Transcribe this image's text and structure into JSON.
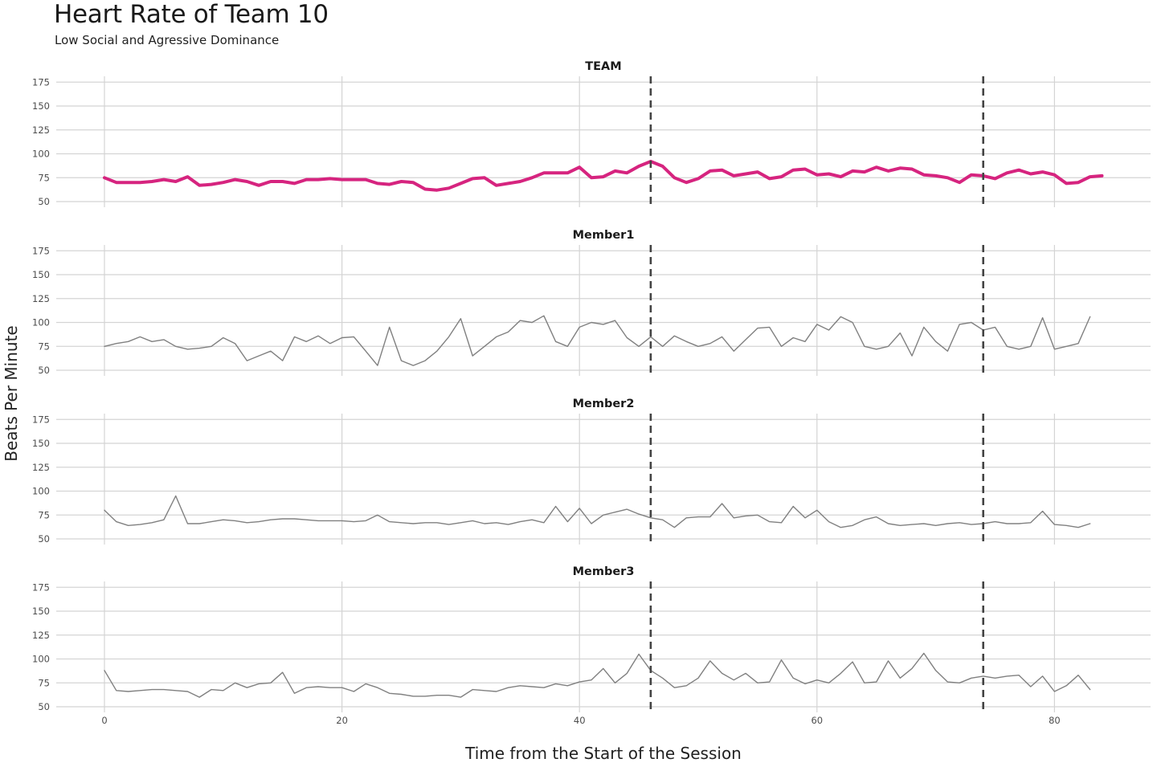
{
  "chart_data": {
    "type": "line",
    "title": "Heart Rate of Team 10",
    "subtitle": "Low Social and Agressive Dominance",
    "xlabel": "Time from the Start of the Session",
    "ylabel": "Beats Per Minute",
    "xlim": [
      -4.2,
      86
    ],
    "ylim": [
      46,
      179
    ],
    "x_ticks": [
      0,
      20,
      40,
      60,
      80
    ],
    "y_ticks": [
      50,
      75,
      100,
      125,
      150,
      175
    ],
    "vlines": [
      46,
      74
    ],
    "colors": {
      "team": "#d6247f",
      "member": "#808080",
      "vline": "#444444",
      "grid": "#d4d4d4"
    },
    "panels": [
      {
        "name": "TEAM",
        "x": [
          0,
          1,
          2,
          3,
          4,
          5,
          6,
          7,
          8,
          9,
          10,
          11,
          12,
          13,
          14,
          15,
          16,
          17,
          18,
          19,
          20,
          21,
          22,
          23,
          24,
          25,
          26,
          27,
          28,
          29,
          30,
          31,
          32,
          33,
          34,
          35,
          36,
          37,
          38,
          39,
          40,
          41,
          42,
          43,
          44,
          45,
          46,
          47,
          48,
          49,
          50,
          51,
          52,
          53,
          54,
          55,
          56,
          57,
          58,
          59,
          60,
          61,
          62,
          63,
          64,
          65,
          66,
          67,
          68,
          69,
          70,
          71,
          72,
          73,
          74,
          75,
          76,
          77,
          78,
          79,
          80,
          81,
          82,
          83,
          84
        ],
        "y": [
          75,
          70,
          70,
          70,
          71,
          73,
          71,
          76,
          67,
          68,
          70,
          73,
          71,
          67,
          71,
          71,
          69,
          73,
          73,
          74,
          73,
          73,
          73,
          69,
          68,
          71,
          70,
          63,
          62,
          64,
          69,
          74,
          75,
          67,
          69,
          71,
          75,
          80,
          80,
          80,
          86,
          75,
          76,
          82,
          80,
          87,
          92,
          87,
          75,
          70,
          74,
          82,
          83,
          77,
          79,
          81,
          74,
          76,
          83,
          84,
          78,
          79,
          76,
          82,
          81,
          86,
          82,
          85,
          84,
          78,
          77,
          75,
          70,
          78,
          77,
          74,
          80,
          83,
          79,
          81,
          78,
          69,
          70,
          76,
          77
        ]
      },
      {
        "name": "Member1",
        "x": [
          0,
          1,
          2,
          3,
          4,
          5,
          6,
          7,
          8,
          9,
          10,
          11,
          12,
          13,
          14,
          15,
          16,
          17,
          18,
          19,
          20,
          21,
          22,
          23,
          24,
          25,
          26,
          27,
          28,
          29,
          30,
          31,
          32,
          33,
          34,
          35,
          36,
          37,
          38,
          39,
          40,
          41,
          42,
          43,
          44,
          45,
          46,
          47,
          48,
          49,
          50,
          51,
          52,
          53,
          54,
          55,
          56,
          57,
          58,
          59,
          60,
          61,
          62,
          63,
          64,
          65,
          66,
          67,
          68,
          69,
          70,
          71,
          72,
          73,
          74,
          75,
          76,
          77,
          78,
          79,
          80,
          81,
          82,
          83
        ],
        "y": [
          75,
          78,
          80,
          85,
          80,
          82,
          75,
          72,
          73,
          75,
          84,
          78,
          60,
          65,
          70,
          60,
          85,
          80,
          86,
          78,
          84,
          85,
          70,
          55,
          95,
          60,
          55,
          60,
          70,
          85,
          104,
          65,
          75,
          85,
          90,
          102,
          100,
          107,
          80,
          75,
          95,
          100,
          98,
          102,
          84,
          75,
          85,
          75,
          86,
          80,
          75,
          78,
          85,
          70,
          82,
          94,
          95,
          75,
          84,
          80,
          98,
          92,
          106,
          100,
          75,
          72,
          75,
          89,
          65,
          95,
          80,
          70,
          98,
          100,
          92,
          95,
          75,
          72,
          75,
          105,
          72,
          75,
          78,
          106
        ]
      },
      {
        "name": "Member2",
        "x": [
          0,
          1,
          2,
          3,
          4,
          5,
          6,
          7,
          8,
          9,
          10,
          11,
          12,
          13,
          14,
          15,
          16,
          17,
          18,
          19,
          20,
          21,
          22,
          23,
          24,
          25,
          26,
          27,
          28,
          29,
          30,
          31,
          32,
          33,
          34,
          35,
          36,
          37,
          38,
          39,
          40,
          41,
          42,
          43,
          44,
          45,
          46,
          47,
          48,
          49,
          50,
          51,
          52,
          53,
          54,
          55,
          56,
          57,
          58,
          59,
          60,
          61,
          62,
          63,
          64,
          65,
          66,
          67,
          68,
          69,
          70,
          71,
          72,
          73,
          74,
          75,
          76,
          77,
          78,
          79,
          80,
          81,
          82,
          83
        ],
        "y": [
          80,
          68,
          64,
          65,
          67,
          70,
          95,
          66,
          66,
          68,
          70,
          69,
          67,
          68,
          70,
          71,
          71,
          70,
          69,
          69,
          69,
          68,
          69,
          75,
          68,
          67,
          66,
          67,
          67,
          65,
          67,
          69,
          66,
          67,
          65,
          68,
          70,
          67,
          84,
          68,
          82,
          66,
          75,
          78,
          81,
          76,
          72,
          70,
          62,
          72,
          73,
          73,
          87,
          72,
          74,
          75,
          68,
          67,
          84,
          72,
          80,
          68,
          62,
          64,
          70,
          73,
          66,
          64,
          65,
          66,
          64,
          66,
          67,
          65,
          66,
          68,
          66,
          66,
          67,
          79,
          65,
          64,
          62,
          66
        ]
      },
      {
        "name": "Member3",
        "x": [
          0,
          1,
          2,
          3,
          4,
          5,
          6,
          7,
          8,
          9,
          10,
          11,
          12,
          13,
          14,
          15,
          16,
          17,
          18,
          19,
          20,
          21,
          22,
          23,
          24,
          25,
          26,
          27,
          28,
          29,
          30,
          31,
          32,
          33,
          34,
          35,
          36,
          37,
          38,
          39,
          40,
          41,
          42,
          43,
          44,
          45,
          46,
          47,
          48,
          49,
          50,
          51,
          52,
          53,
          54,
          55,
          56,
          57,
          58,
          59,
          60,
          61,
          62,
          63,
          64,
          65,
          66,
          67,
          68,
          69,
          70,
          71,
          72,
          73,
          74,
          75,
          76,
          77,
          78,
          79,
          80,
          81,
          82,
          83
        ],
        "y": [
          88,
          67,
          66,
          67,
          68,
          68,
          67,
          66,
          60,
          68,
          67,
          75,
          70,
          74,
          75,
          86,
          64,
          70,
          71,
          70,
          70,
          66,
          74,
          70,
          64,
          63,
          61,
          61,
          62,
          62,
          60,
          68,
          67,
          66,
          70,
          72,
          71,
          70,
          74,
          72,
          76,
          78,
          90,
          75,
          85,
          105,
          88,
          80,
          70,
          72,
          80,
          98,
          85,
          78,
          85,
          75,
          76,
          99,
          80,
          74,
          78,
          75,
          85,
          97,
          75,
          76,
          98,
          80,
          90,
          106,
          88,
          76,
          75,
          80,
          82,
          80,
          82,
          83,
          71,
          82,
          66,
          72,
          83,
          68
        ]
      }
    ]
  }
}
